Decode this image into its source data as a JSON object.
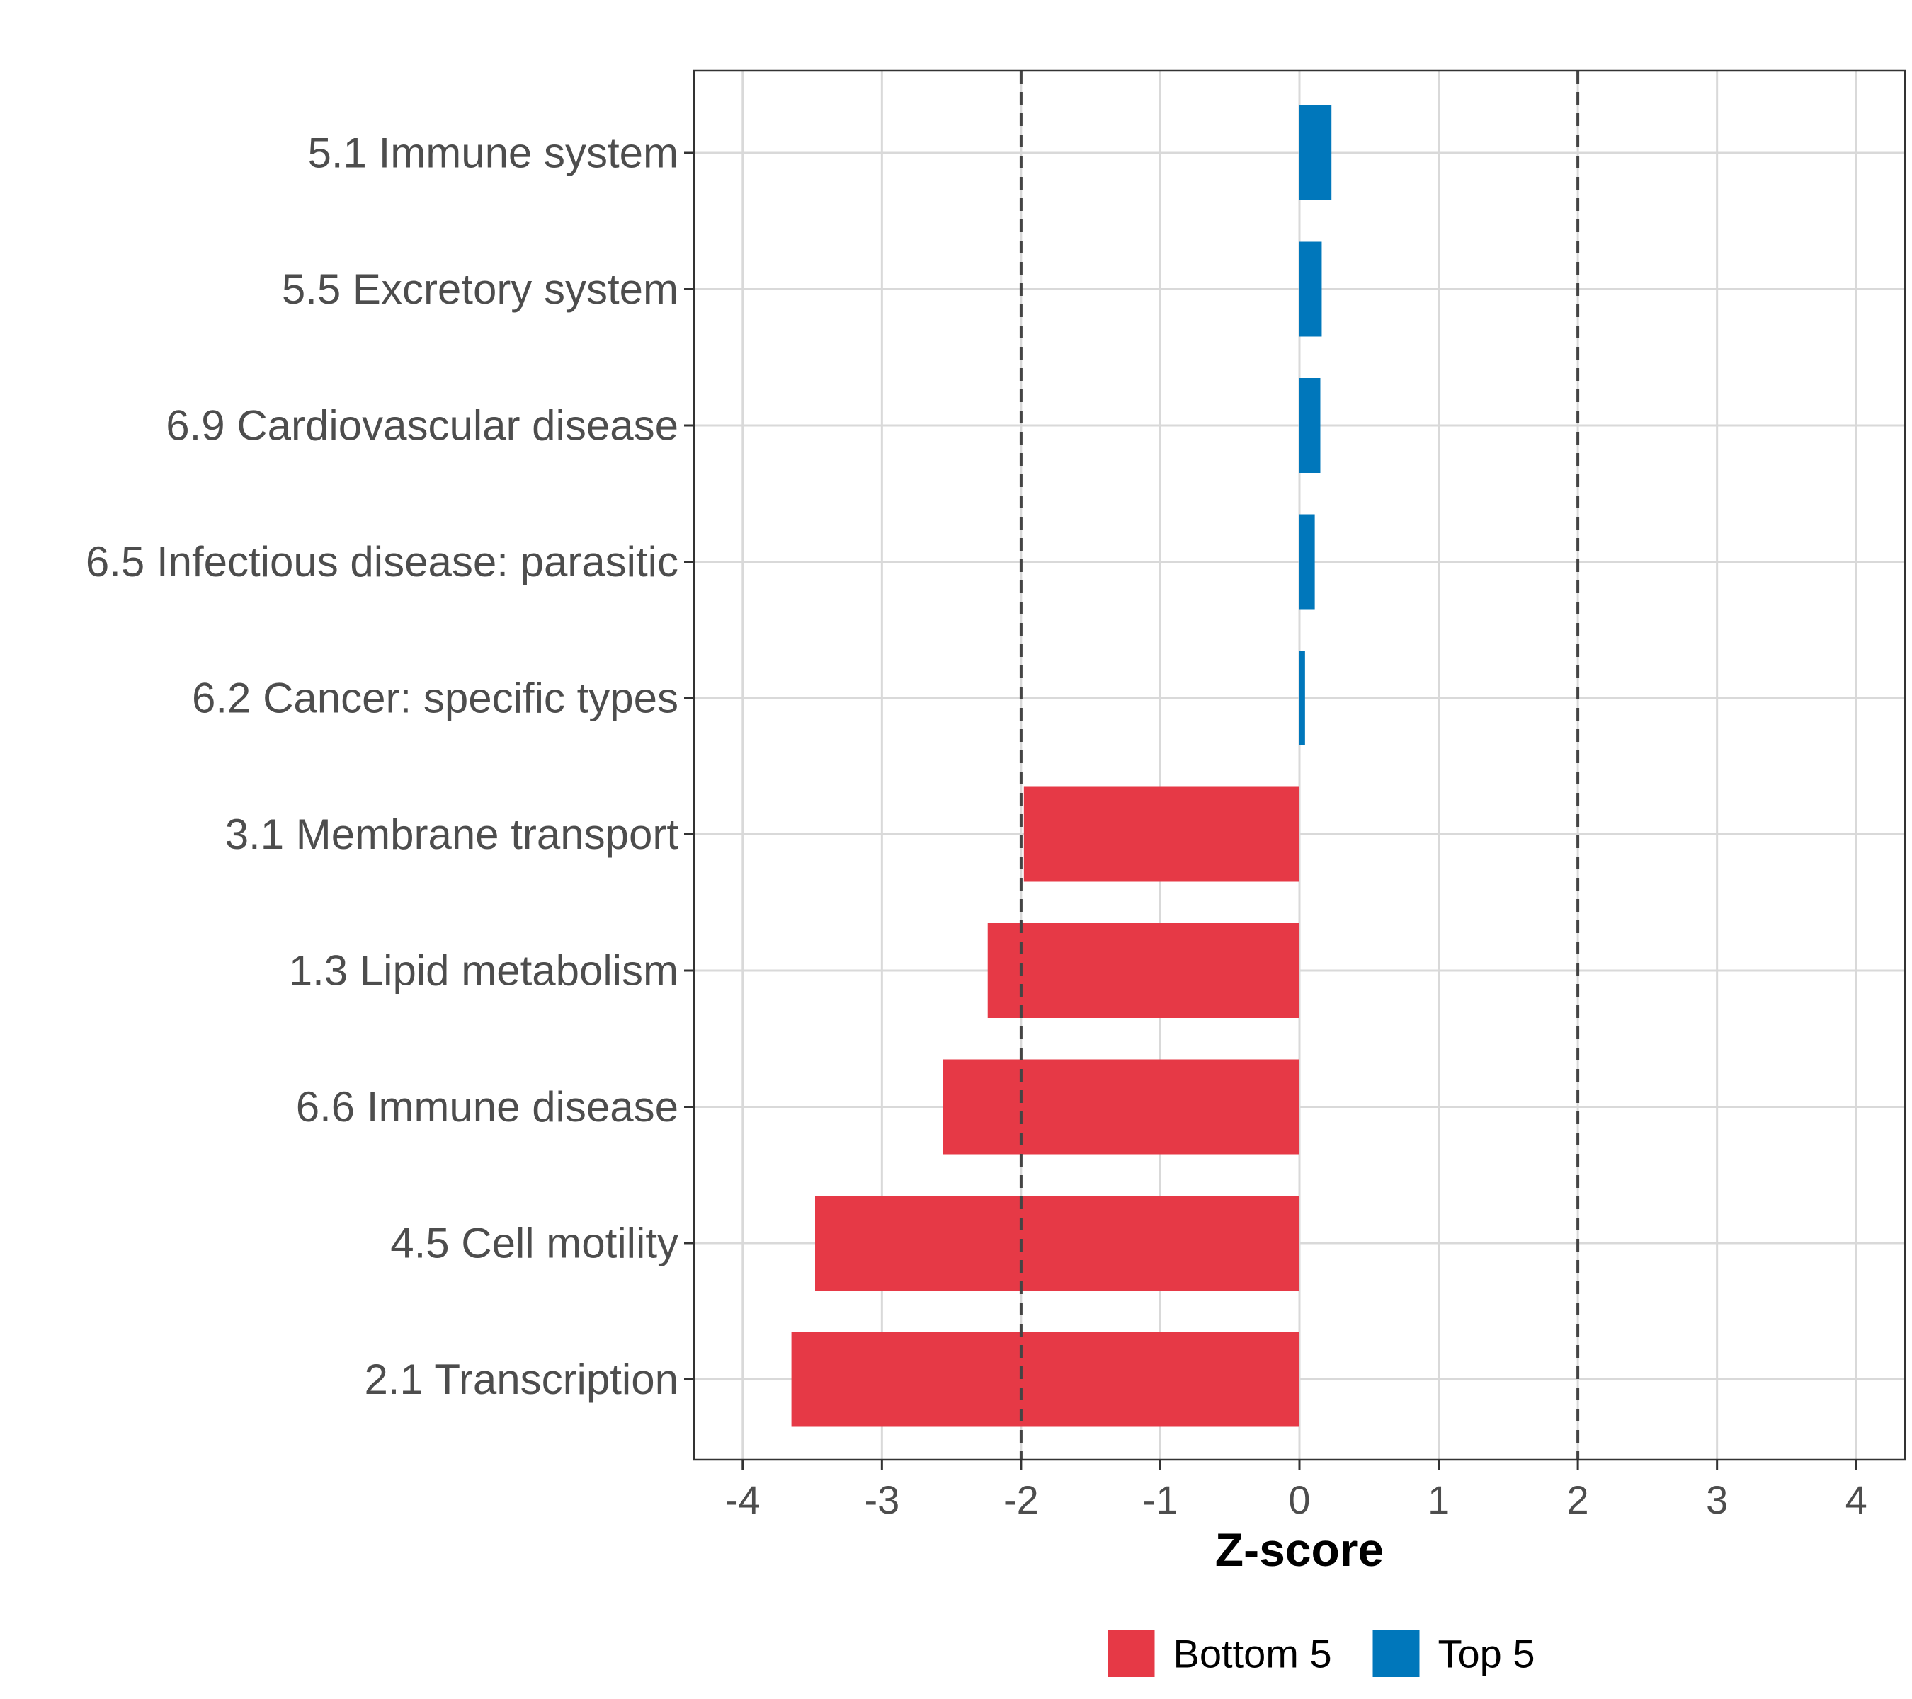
{
  "chart_data": {
    "type": "bar",
    "orientation": "horizontal",
    "categories": [
      "5.1 Immune system",
      "5.5 Excretory system",
      "6.9 Cardiovascular disease",
      "6.5 Infectious disease: parasitic",
      "6.2 Cancer: specific types",
      "3.1 Membrane transport",
      "1.3 Lipid metabolism",
      "6.6 Immune disease",
      "4.5 Cell motility",
      "2.1 Transcription"
    ],
    "values": [
      0.23,
      0.16,
      0.15,
      0.11,
      0.04,
      -1.98,
      -2.24,
      -2.56,
      -3.48,
      -3.65
    ],
    "groups": [
      "Top 5",
      "Top 5",
      "Top 5",
      "Top 5",
      "Top 5",
      "Bottom 5",
      "Bottom 5",
      "Bottom 5",
      "Bottom 5",
      "Bottom 5"
    ],
    "xlabel": "Z-score",
    "ylabel": "",
    "xlim": [
      -4.35,
      4.35
    ],
    "xticks": [
      "-4",
      "-3",
      "-2",
      "-1",
      "0",
      "1",
      "2",
      "3",
      "4"
    ],
    "reference_lines": [
      -2,
      2
    ],
    "grid": true,
    "legend": {
      "position": "bottom",
      "items": [
        {
          "label": "Bottom 5",
          "color": "#e63946"
        },
        {
          "label": "Top 5",
          "color": "#0077bb"
        }
      ]
    },
    "colors": {
      "Bottom 5": "#e63946",
      "Top 5": "#0077bb"
    }
  }
}
